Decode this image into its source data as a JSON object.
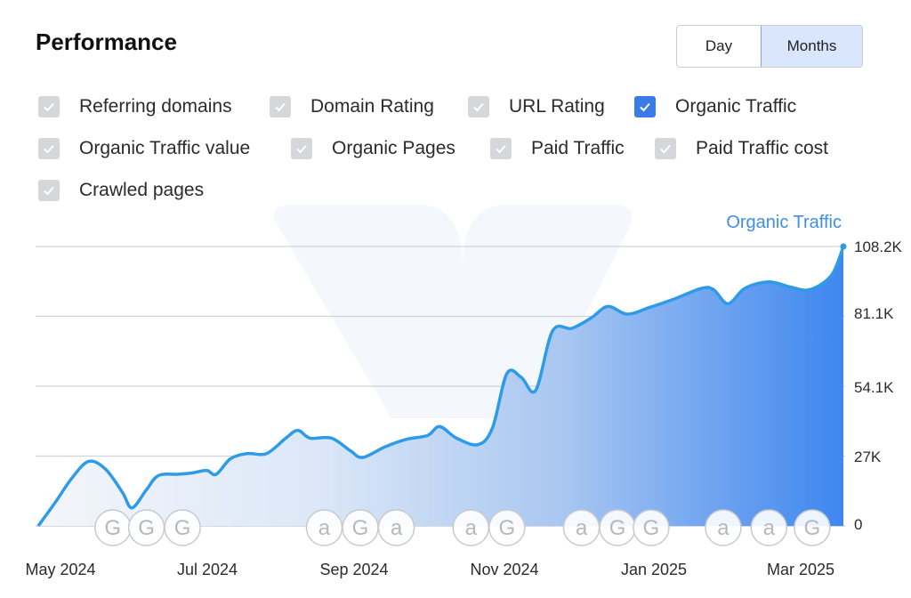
{
  "header": {
    "title": "Performance"
  },
  "period_toggle": {
    "options": [
      "Day",
      "Months"
    ],
    "selected": "Months"
  },
  "metrics": [
    {
      "label": "Referring domains",
      "checked": false
    },
    {
      "label": "Domain Rating",
      "checked": false
    },
    {
      "label": "URL Rating",
      "checked": false
    },
    {
      "label": "Organic Traffic",
      "checked": true
    },
    {
      "label": "Organic Traffic value",
      "checked": false
    },
    {
      "label": "Organic Pages",
      "checked": false
    },
    {
      "label": "Paid Traffic",
      "checked": false
    },
    {
      "label": "Paid Traffic cost",
      "checked": false
    },
    {
      "label": "Crawled pages",
      "checked": false
    }
  ],
  "colors": {
    "accent": "#3a7be8",
    "line": "#2e9be8",
    "fill_start": "#eef3fb",
    "fill_end": "#3e86f0",
    "grid": "#d0d3d8",
    "checkbox_off": "#d5d7db"
  },
  "chart_data": {
    "type": "area",
    "series": [
      {
        "name": "Organic Traffic",
        "points": [
          [
            "2024-05-01",
            0
          ],
          [
            "2024-05-08",
            9000
          ],
          [
            "2024-05-15",
            18500
          ],
          [
            "2024-05-22",
            25000
          ],
          [
            "2024-05-29",
            22000
          ],
          [
            "2024-06-05",
            13000
          ],
          [
            "2024-06-09",
            7000
          ],
          [
            "2024-06-15",
            14000
          ],
          [
            "2024-06-20",
            19500
          ],
          [
            "2024-06-28",
            20000
          ],
          [
            "2024-07-04",
            20500
          ],
          [
            "2024-07-10",
            21500
          ],
          [
            "2024-07-14",
            20000
          ],
          [
            "2024-07-20",
            26000
          ],
          [
            "2024-07-27",
            28000
          ],
          [
            "2024-08-04",
            28000
          ],
          [
            "2024-08-12",
            34000
          ],
          [
            "2024-08-17",
            37000
          ],
          [
            "2024-08-22",
            34000
          ],
          [
            "2024-08-31",
            34000
          ],
          [
            "2024-09-08",
            29000
          ],
          [
            "2024-09-13",
            26500
          ],
          [
            "2024-09-22",
            30500
          ],
          [
            "2024-10-01",
            33500
          ],
          [
            "2024-10-10",
            35000
          ],
          [
            "2024-10-15",
            38500
          ],
          [
            "2024-10-22",
            34000
          ],
          [
            "2024-10-31",
            31500
          ],
          [
            "2024-11-06",
            38000
          ],
          [
            "2024-11-12",
            59000
          ],
          [
            "2024-11-18",
            57500
          ],
          [
            "2024-11-24",
            52500
          ],
          [
            "2024-12-01",
            75500
          ],
          [
            "2024-12-09",
            76500
          ],
          [
            "2024-12-17",
            80500
          ],
          [
            "2024-12-24",
            85000
          ],
          [
            "2025-01-01",
            82000
          ],
          [
            "2025-01-10",
            84500
          ],
          [
            "2025-01-21",
            88000
          ],
          [
            "2025-02-01",
            92000
          ],
          [
            "2025-02-06",
            91500
          ],
          [
            "2025-02-12",
            86000
          ],
          [
            "2025-02-19",
            92000
          ],
          [
            "2025-03-01",
            94500
          ],
          [
            "2025-03-10",
            92500
          ],
          [
            "2025-03-18",
            91500
          ],
          [
            "2025-03-27",
            97000
          ],
          [
            "2025-04-01",
            108200
          ]
        ]
      }
    ],
    "x_range": [
      "2024-05-01",
      "2025-04-01"
    ],
    "ylim": [
      0,
      108200
    ],
    "y_ticks": [
      "0",
      "27K",
      "54.1K",
      "81.1K",
      "108.2K"
    ],
    "x_ticks": [
      {
        "label": "May 2024",
        "date": "2024-05-01"
      },
      {
        "label": "Jul 2024",
        "date": "2024-07-01"
      },
      {
        "label": "Sep 2024",
        "date": "2024-09-01"
      },
      {
        "label": "Nov 2024",
        "date": "2024-11-01"
      },
      {
        "label": "Jan 2025",
        "date": "2025-01-01"
      },
      {
        "label": "Mar 2025",
        "date": "2025-03-01"
      }
    ],
    "annotations": [
      {
        "letter": "G",
        "date": "2024-06-01"
      },
      {
        "letter": "G",
        "date": "2024-06-15"
      },
      {
        "letter": "G",
        "date": "2024-06-30"
      },
      {
        "letter": "a",
        "date": "2024-08-28"
      },
      {
        "letter": "G",
        "date": "2024-09-12"
      },
      {
        "letter": "a",
        "date": "2024-09-27"
      },
      {
        "letter": "a",
        "date": "2024-10-28"
      },
      {
        "letter": "G",
        "date": "2024-11-12"
      },
      {
        "letter": "a",
        "date": "2024-12-13"
      },
      {
        "letter": "G",
        "date": "2024-12-28"
      },
      {
        "letter": "G",
        "date": "2025-01-11"
      },
      {
        "letter": "a",
        "date": "2025-02-10"
      },
      {
        "letter": "a",
        "date": "2025-03-01"
      },
      {
        "letter": "G",
        "date": "2025-03-19"
      }
    ],
    "grid": true
  }
}
